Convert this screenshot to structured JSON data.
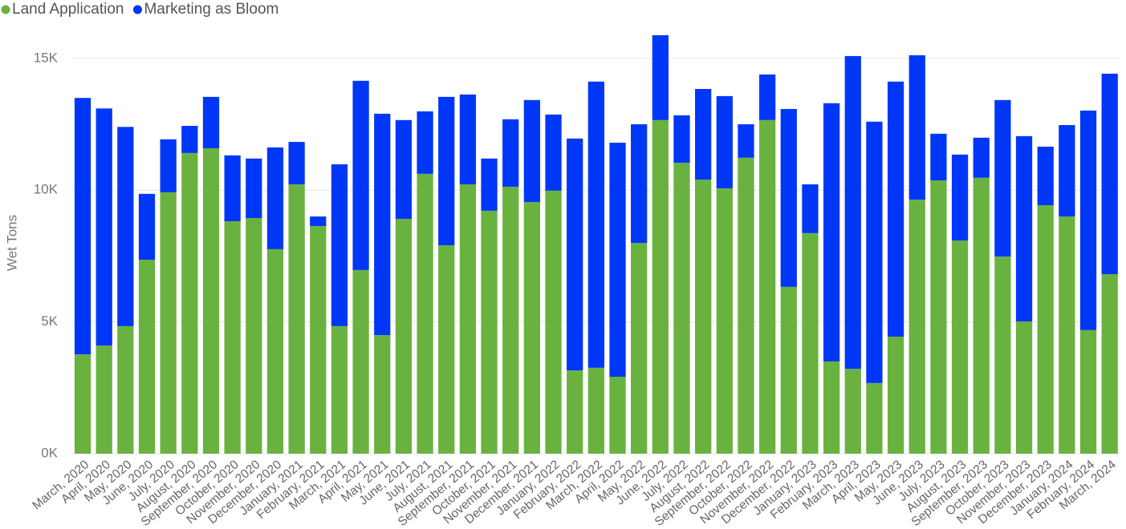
{
  "chart_data": {
    "type": "stacked_bar",
    "y_label": "Wet Tons",
    "categories": [
      "March, 2020",
      "April, 2020",
      "May, 2020",
      "June, 2020",
      "July, 2020",
      "August, 2020",
      "September, 2020",
      "October, 2020",
      "November, 2020",
      "December, 2020",
      "January, 2021",
      "February, 2021",
      "March, 2021",
      "April, 2021",
      "May, 2021",
      "June, 2021",
      "July, 2021",
      "August, 2021",
      "September, 2021",
      "October, 2021",
      "November, 2021",
      "December, 2021",
      "January, 2022",
      "February, 2022",
      "March, 2022",
      "April, 2022",
      "May, 2022",
      "June, 2022",
      "July, 2022",
      "August, 2022",
      "September, 2022",
      "October, 2022",
      "November, 2022",
      "December, 2022",
      "January, 2023",
      "February, 2023",
      "March, 2023",
      "April, 2023",
      "May, 2023",
      "June, 2023",
      "July, 2023",
      "August, 2023",
      "September, 2023",
      "October, 2023",
      "November, 2023",
      "December, 2023",
      "January, 2024",
      "February, 2024",
      "March, 2024"
    ],
    "series": [
      {
        "name": "Land Application",
        "color": "#6ab23f",
        "values": [
          3770,
          4100,
          4840,
          7360,
          9920,
          11410,
          11590,
          8820,
          8940,
          7760,
          10220,
          8640,
          4840,
          6970,
          4500,
          8910,
          10620,
          7910,
          10220,
          9220,
          10130,
          9550,
          9980,
          3160,
          3260,
          2920,
          8000,
          12660,
          11040,
          10400,
          10070,
          11230,
          12660,
          6330,
          8370,
          3500,
          3220,
          2680,
          4440,
          9640,
          10370,
          8090,
          10470,
          7480,
          5020,
          9430,
          9000,
          4690,
          6810
        ]
      },
      {
        "name": "Marketing as Bloom",
        "color": "#0037f7",
        "values": [
          9730,
          9000,
          7560,
          2500,
          2010,
          1030,
          1950,
          2500,
          2260,
          3860,
          1610,
          360,
          6140,
          7180,
          8400,
          3750,
          2370,
          5630,
          3410,
          1980,
          2560,
          3870,
          2890,
          8800,
          10860,
          8880,
          4500,
          3220,
          1800,
          3440,
          3500,
          1270,
          1730,
          6750,
          1850,
          9800,
          11870,
          9920,
          9680,
          5480,
          1770,
          3260,
          1520,
          5940,
          7030,
          2220,
          3470,
          8330,
          7610
        ]
      }
    ],
    "ylim": [
      0,
      16000
    ],
    "yticks": [
      {
        "value": 0,
        "label": "0K"
      },
      {
        "value": 5000,
        "label": "5K"
      },
      {
        "value": 10000,
        "label": "10K"
      },
      {
        "value": 15000,
        "label": "15K"
      }
    ],
    "grid": true,
    "legend": "top-left"
  }
}
